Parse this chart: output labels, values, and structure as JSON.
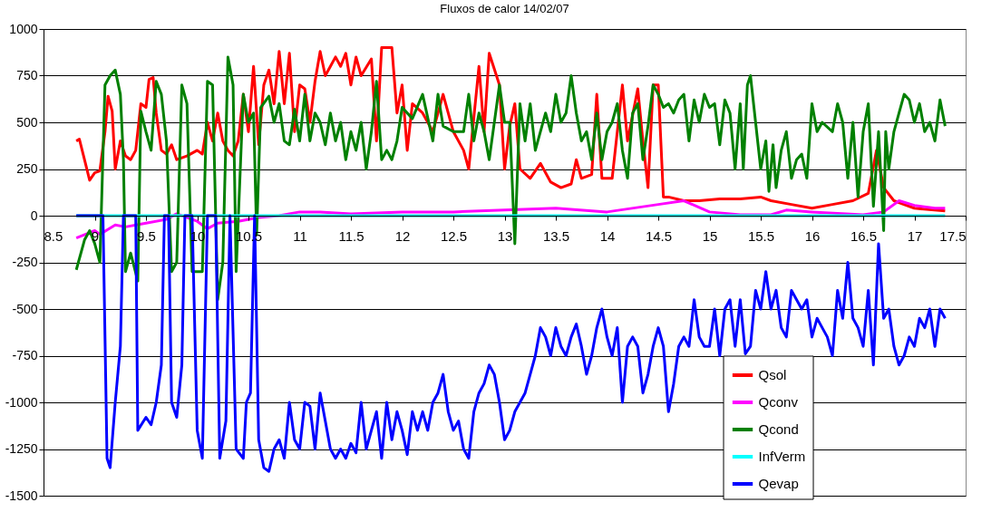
{
  "chart_data": {
    "type": "line",
    "title": "Fluxos de calor 14/02/07",
    "xlim": [
      8.5,
      17.5
    ],
    "xticks": [
      8.5,
      9,
      9.5,
      10,
      10.5,
      11,
      11.5,
      12,
      12.5,
      13,
      13.5,
      14,
      14.5,
      15,
      15.5,
      16,
      16.5,
      17,
      17.5
    ],
    "ylim": [
      -1500,
      1000
    ],
    "yticks": [
      -1500,
      -1250,
      -1000,
      -750,
      -500,
      -250,
      0,
      250,
      500,
      750,
      1000
    ],
    "grid": "y",
    "legend": "bottom right",
    "series": [
      {
        "name": "Qsol",
        "color": "#ff0000",
        "x": [
          8.82,
          8.85,
          8.9,
          8.95,
          9.0,
          9.05,
          9.1,
          9.13,
          9.17,
          9.2,
          9.25,
          9.3,
          9.35,
          9.4,
          9.45,
          9.5,
          9.53,
          9.57,
          9.6,
          9.65,
          9.7,
          9.75,
          9.8,
          9.9,
          10.0,
          10.05,
          10.1,
          10.15,
          10.2,
          10.25,
          10.3,
          10.35,
          10.4,
          10.45,
          10.5,
          10.55,
          10.6,
          10.65,
          10.7,
          10.75,
          10.8,
          10.85,
          10.9,
          10.95,
          11.0,
          11.05,
          11.1,
          11.15,
          11.2,
          11.25,
          11.3,
          11.35,
          11.4,
          11.45,
          11.5,
          11.55,
          11.6,
          11.7,
          11.75,
          11.8,
          11.9,
          11.95,
          12.0,
          12.05,
          12.1,
          12.2,
          12.3,
          12.4,
          12.5,
          12.6,
          12.65,
          12.75,
          12.8,
          12.85,
          12.95,
          13.0,
          13.05,
          13.1,
          13.15,
          13.25,
          13.35,
          13.45,
          13.55,
          13.65,
          13.7,
          13.75,
          13.85,
          13.9,
          13.95,
          14.05,
          14.15,
          14.2,
          14.3,
          14.35,
          14.4,
          14.45,
          14.5,
          14.55,
          14.6,
          14.75,
          14.9,
          15.1,
          15.3,
          15.5,
          15.6,
          15.8,
          16.0,
          16.2,
          16.4,
          16.55,
          16.63,
          16.7,
          16.8,
          17.0,
          17.3
        ],
        "values": [
          400,
          410,
          300,
          190,
          230,
          240,
          450,
          640,
          560,
          250,
          400,
          320,
          300,
          350,
          600,
          580,
          730,
          740,
          550,
          350,
          330,
          380,
          300,
          320,
          350,
          330,
          500,
          400,
          550,
          400,
          350,
          320,
          400,
          650,
          450,
          800,
          380,
          700,
          780,
          600,
          880,
          600,
          870,
          450,
          700,
          680,
          500,
          720,
          880,
          750,
          800,
          850,
          800,
          870,
          700,
          850,
          750,
          840,
          400,
          900,
          900,
          550,
          700,
          350,
          600,
          550,
          450,
          650,
          450,
          350,
          250,
          800,
          450,
          870,
          700,
          250,
          480,
          600,
          250,
          200,
          280,
          180,
          150,
          170,
          300,
          200,
          220,
          650,
          200,
          200,
          700,
          400,
          680,
          400,
          150,
          700,
          700,
          100,
          100,
          80,
          80,
          90,
          90,
          100,
          80,
          60,
          40,
          60,
          80,
          120,
          350,
          150,
          80,
          40,
          25
        ]
      },
      {
        "name": "Qconv",
        "color": "#ff00ff",
        "x": [
          8.82,
          9.0,
          9.05,
          9.2,
          9.3,
          9.5,
          9.7,
          9.8,
          10.0,
          10.1,
          10.2,
          10.4,
          10.6,
          10.8,
          11.0,
          11.2,
          11.5,
          12.0,
          12.5,
          13.0,
          13.5,
          14.0,
          14.5,
          14.75,
          15.0,
          15.3,
          15.6,
          15.75,
          16.0,
          16.5,
          16.7,
          16.85,
          17.0,
          17.2,
          17.3
        ],
        "values": [
          -120,
          -80,
          -100,
          -50,
          -60,
          -40,
          -20,
          10,
          -30,
          -70,
          -40,
          -30,
          -10,
          0,
          20,
          20,
          10,
          20,
          20,
          30,
          40,
          20,
          60,
          80,
          20,
          5,
          5,
          30,
          20,
          5,
          20,
          80,
          55,
          40,
          40
        ]
      },
      {
        "name": "Qcond",
        "color": "#008000",
        "x": [
          8.82,
          8.9,
          8.95,
          9.0,
          9.05,
          9.1,
          9.15,
          9.2,
          9.25,
          9.28,
          9.3,
          9.35,
          9.42,
          9.45,
          9.5,
          9.55,
          9.6,
          9.65,
          9.7,
          9.75,
          9.8,
          9.85,
          9.9,
          9.95,
          10.05,
          10.1,
          10.15,
          10.2,
          10.25,
          10.3,
          10.35,
          10.38,
          10.45,
          10.5,
          10.55,
          10.58,
          10.62,
          10.7,
          10.75,
          10.8,
          10.85,
          10.9,
          10.95,
          11.0,
          11.05,
          11.1,
          11.15,
          11.2,
          11.25,
          11.3,
          11.35,
          11.4,
          11.45,
          11.5,
          11.55,
          11.6,
          11.65,
          11.7,
          11.75,
          11.8,
          11.85,
          11.9,
          11.95,
          12.0,
          12.1,
          12.2,
          12.3,
          12.35,
          12.4,
          12.5,
          12.6,
          12.65,
          12.7,
          12.75,
          12.8,
          12.85,
          12.95,
          13.0,
          13.05,
          13.1,
          13.15,
          13.2,
          13.25,
          13.3,
          13.4,
          13.45,
          13.5,
          13.55,
          13.6,
          13.65,
          13.7,
          13.75,
          13.8,
          13.85,
          13.9,
          13.95,
          14.0,
          14.05,
          14.1,
          14.15,
          14.2,
          14.25,
          14.3,
          14.35,
          14.4,
          14.45,
          14.5,
          14.55,
          14.6,
          14.65,
          14.7,
          14.75,
          14.8,
          14.85,
          14.9,
          14.95,
          15.0,
          15.05,
          15.1,
          15.15,
          15.2,
          15.25,
          15.3,
          15.33,
          15.37,
          15.4,
          15.45,
          15.5,
          15.55,
          15.58,
          15.62,
          15.65,
          15.7,
          15.75,
          15.8,
          15.85,
          15.9,
          15.95,
          16.0,
          16.05,
          16.1,
          16.2,
          16.25,
          16.3,
          16.35,
          16.4,
          16.45,
          16.5,
          16.55,
          16.6,
          16.65,
          16.7,
          16.72,
          16.75,
          16.8,
          16.85,
          16.9,
          16.95,
          17.0,
          17.05,
          17.1,
          17.15,
          17.2,
          17.25,
          17.3
        ],
        "values": [
          -290,
          -130,
          -80,
          -150,
          -250,
          700,
          750,
          780,
          650,
          300,
          -300,
          -200,
          -350,
          560,
          450,
          350,
          720,
          650,
          400,
          -300,
          -250,
          700,
          600,
          -300,
          -300,
          720,
          700,
          -450,
          -250,
          850,
          700,
          -300,
          650,
          500,
          550,
          -100,
          580,
          640,
          500,
          600,
          400,
          380,
          570,
          400,
          650,
          400,
          550,
          500,
          380,
          550,
          400,
          500,
          300,
          450,
          350,
          500,
          250,
          450,
          720,
          300,
          350,
          300,
          400,
          580,
          520,
          650,
          400,
          650,
          480,
          450,
          450,
          650,
          400,
          550,
          450,
          300,
          700,
          500,
          500,
          -150,
          600,
          400,
          600,
          350,
          550,
          450,
          650,
          500,
          550,
          750,
          550,
          400,
          450,
          300,
          550,
          300,
          450,
          500,
          600,
          350,
          200,
          550,
          600,
          300,
          480,
          700,
          650,
          580,
          600,
          550,
          620,
          650,
          400,
          620,
          500,
          650,
          580,
          600,
          380,
          620,
          550,
          250,
          600,
          250,
          700,
          750,
          500,
          250,
          400,
          130,
          380,
          150,
          350,
          450,
          200,
          300,
          330,
          200,
          600,
          450,
          500,
          450,
          600,
          500,
          200,
          500,
          100,
          450,
          600,
          50,
          450,
          -80,
          450,
          250,
          450,
          550,
          650,
          620,
          500,
          600,
          450,
          500,
          400,
          620,
          480
        ]
      },
      {
        "name": "InfVerm",
        "color": "#00ffff",
        "x": [
          8.82,
          17.3
        ],
        "values": [
          0,
          0
        ]
      },
      {
        "name": "Qevap",
        "color": "#0000ff",
        "x": [
          8.82,
          9.08,
          9.12,
          9.15,
          9.2,
          9.25,
          9.28,
          9.4,
          9.42,
          9.5,
          9.55,
          9.6,
          9.65,
          9.68,
          9.72,
          9.75,
          9.8,
          9.85,
          9.88,
          9.95,
          10.0,
          10.05,
          10.1,
          10.18,
          10.22,
          10.28,
          10.32,
          10.38,
          10.45,
          10.48,
          10.52,
          10.56,
          10.6,
          10.65,
          10.7,
          10.75,
          10.8,
          10.85,
          10.9,
          10.95,
          11.0,
          11.05,
          11.1,
          11.15,
          11.2,
          11.25,
          11.3,
          11.35,
          11.4,
          11.45,
          11.5,
          11.55,
          11.6,
          11.65,
          11.7,
          11.75,
          11.8,
          11.85,
          11.9,
          11.95,
          12.0,
          12.05,
          12.1,
          12.15,
          12.2,
          12.25,
          12.3,
          12.35,
          12.4,
          12.45,
          12.5,
          12.55,
          12.6,
          12.65,
          12.7,
          12.75,
          12.8,
          12.85,
          12.9,
          12.95,
          13.0,
          13.05,
          13.1,
          13.15,
          13.2,
          13.25,
          13.3,
          13.35,
          13.4,
          13.45,
          13.5,
          13.55,
          13.6,
          13.65,
          13.7,
          13.75,
          13.8,
          13.85,
          13.9,
          13.95,
          14.0,
          14.05,
          14.1,
          14.15,
          14.2,
          14.25,
          14.3,
          14.35,
          14.4,
          14.45,
          14.5,
          14.55,
          14.6,
          14.65,
          14.7,
          14.75,
          14.8,
          14.85,
          14.9,
          14.95,
          15.0,
          15.05,
          15.1,
          15.15,
          15.2,
          15.25,
          15.3,
          15.35,
          15.4,
          15.45,
          15.5,
          15.55,
          15.6,
          15.65,
          15.7,
          15.75,
          15.8,
          15.85,
          15.9,
          15.95,
          16.0,
          16.05,
          16.1,
          16.15,
          16.2,
          16.25,
          16.3,
          16.35,
          16.4,
          16.45,
          16.5,
          16.55,
          16.6,
          16.65,
          16.7,
          16.75,
          16.8,
          16.85,
          16.9,
          16.95,
          17.0,
          17.05,
          17.1,
          17.15,
          17.2,
          17.25,
          17.3
        ],
        "values": [
          0,
          0,
          -1300,
          -1350,
          -1000,
          -700,
          0,
          0,
          -1150,
          -1080,
          -1120,
          -1000,
          -800,
          0,
          0,
          -1000,
          -1080,
          -800,
          0,
          0,
          -1150,
          -1300,
          0,
          0,
          -1300,
          -1100,
          0,
          -1250,
          -1300,
          -1000,
          -950,
          0,
          -1200,
          -1350,
          -1370,
          -1250,
          -1200,
          -1300,
          -1000,
          -1200,
          -1250,
          -1000,
          -1020,
          -1250,
          -950,
          -1100,
          -1250,
          -1300,
          -1250,
          -1300,
          -1220,
          -1270,
          -1000,
          -1250,
          -1150,
          -1050,
          -1300,
          -1000,
          -1200,
          -1050,
          -1150,
          -1280,
          -1050,
          -1150,
          -1050,
          -1150,
          -1000,
          -950,
          -850,
          -1050,
          -1150,
          -1100,
          -1250,
          -1300,
          -1050,
          -950,
          -900,
          -800,
          -850,
          -1000,
          -1200,
          -1150,
          -1050,
          -1000,
          -950,
          -850,
          -750,
          -600,
          -650,
          -750,
          -600,
          -700,
          -750,
          -650,
          -580,
          -700,
          -850,
          -750,
          -600,
          -500,
          -650,
          -750,
          -600,
          -1000,
          -700,
          -650,
          -700,
          -950,
          -850,
          -700,
          -600,
          -700,
          -1050,
          -900,
          -700,
          -650,
          -700,
          -450,
          -650,
          -700,
          -700,
          -500,
          -750,
          -500,
          -450,
          -700,
          -450,
          -740,
          -700,
          -400,
          -500,
          -300,
          -500,
          -400,
          -600,
          -650,
          -400,
          -450,
          -500,
          -450,
          -650,
          -550,
          -600,
          -650,
          -750,
          -400,
          -550,
          -250,
          -550,
          -600,
          -700,
          -400,
          -800,
          -150,
          -550,
          -500,
          -700,
          -800,
          -750,
          -650,
          -700,
          -550,
          -600,
          -500,
          -700,
          -500,
          -550
        ]
      }
    ]
  }
}
